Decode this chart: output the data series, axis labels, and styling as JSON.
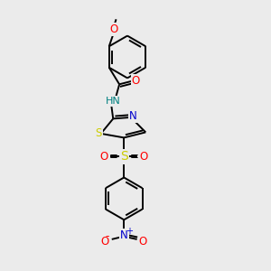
{
  "background_color": "#ebebeb",
  "bond_color": "#000000",
  "O_color": "#ff0000",
  "N_color": "#0000cd",
  "S_color": "#cccc00",
  "H_color": "#008080",
  "figsize": [
    3.0,
    3.0
  ],
  "dpi": 100,
  "lw": 1.4,
  "fs": 8.5,
  "xlim": [
    0,
    10
  ],
  "ylim": [
    0,
    10
  ]
}
